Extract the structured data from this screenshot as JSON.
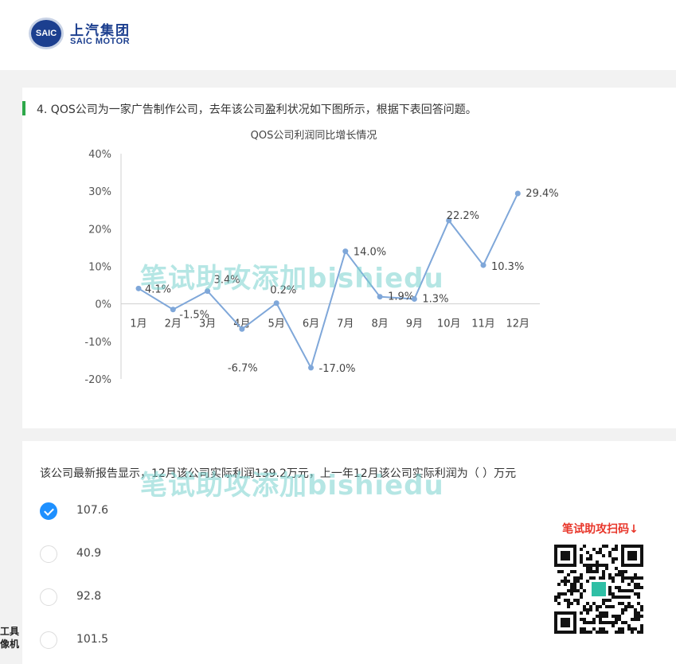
{
  "header": {
    "logo_badge": "SAIC",
    "logo_cn": "上汽集团",
    "logo_en": "SAIC MOTOR"
  },
  "question": {
    "text": "4.  QOS公司为一家广告制作公司，去年该公司盈利状况如下图所示，根据下表回答问题。"
  },
  "chart_data": {
    "type": "line",
    "title": "QOS公司利润同比增长情况",
    "categories": [
      "1月",
      "2月",
      "3月",
      "4月",
      "5月",
      "6月",
      "7月",
      "8月",
      "9月",
      "10月",
      "11月",
      "12月"
    ],
    "values": [
      4.1,
      -1.5,
      3.4,
      -6.7,
      0.2,
      -17.0,
      14.0,
      1.9,
      1.3,
      22.2,
      10.3,
      29.4
    ],
    "data_labels": [
      "4.1%",
      "-1.5%",
      "3.4%",
      "-6.7%",
      "0.2%",
      "-17.0%",
      "14.0%",
      "1.9%",
      "1.3%",
      "22.2%",
      "10.3%",
      "29.4%"
    ],
    "yticks": [
      -20,
      -10,
      0,
      10,
      20,
      30,
      40
    ],
    "ytick_labels": [
      "-20%",
      "-10%",
      "0%",
      "10%",
      "20%",
      "30%",
      "40%"
    ],
    "ylim": [
      -20,
      40
    ],
    "grid": false,
    "line_color": "#7fa7d9"
  },
  "stem": "该公司最新报告显示，12月该公司实际利润139.2万元，上一年12月该公司实际利润为（ ）万元",
  "options": [
    {
      "label": "107.6",
      "checked": true
    },
    {
      "label": "40.9",
      "checked": false
    },
    {
      "label": "92.8",
      "checked": false
    },
    {
      "label": "101.5",
      "checked": false
    }
  ],
  "watermark": {
    "text": "笔试助攻添加bishiedu"
  },
  "qr": {
    "title": "笔试助攻扫码↓"
  },
  "corner": {
    "line1": "工具",
    "line2": "像机"
  },
  "colors": {
    "accent_bar": "#2ea84a",
    "check": "#1e90ff",
    "qr_title": "#e8362a",
    "brand": "#1c3f8f"
  }
}
